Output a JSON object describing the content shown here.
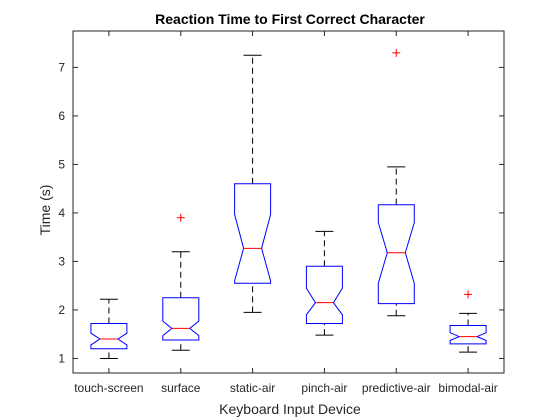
{
  "chart_data": {
    "type": "box",
    "title": "Reaction Time to First Correct Character",
    "xlabel": "Keyboard Input Device",
    "ylabel": "Time (s)",
    "ylim": [
      0.7,
      7.75
    ],
    "yticks": [
      1,
      2,
      3,
      4,
      5,
      6,
      7
    ],
    "notched": true,
    "grid": false,
    "legend": "none",
    "colors": {
      "box": "#0000ff",
      "median": "#ff0000",
      "whisker": "#000000",
      "outlier": "#ff0000"
    },
    "categories": [
      "touch-screen",
      "surface",
      "static-air",
      "pinch-air",
      "predictive-air",
      "bimodal-air"
    ],
    "boxes": [
      {
        "whisker_low": 1.0,
        "q1": 1.2,
        "notch_low": 1.28,
        "median": 1.4,
        "notch_high": 1.52,
        "q3": 1.72,
        "whisker_high": 2.22,
        "outliers": []
      },
      {
        "whisker_low": 1.17,
        "q1": 1.38,
        "notch_low": 1.47,
        "median": 1.62,
        "notch_high": 1.77,
        "q3": 2.25,
        "whisker_high": 3.2,
        "outliers": [
          3.9
        ]
      },
      {
        "whisker_low": 1.95,
        "q1": 2.55,
        "notch_low": 2.6,
        "median": 3.27,
        "notch_high": 3.97,
        "q3": 4.6,
        "whisker_high": 7.25,
        "outliers": []
      },
      {
        "whisker_low": 1.48,
        "q1": 1.72,
        "notch_low": 1.9,
        "median": 2.15,
        "notch_high": 2.45,
        "q3": 2.9,
        "whisker_high": 3.62,
        "outliers": []
      },
      {
        "whisker_low": 1.88,
        "q1": 2.13,
        "notch_low": 2.55,
        "median": 3.18,
        "notch_high": 3.8,
        "q3": 4.17,
        "whisker_high": 4.95,
        "outliers": [
          7.3
        ]
      },
      {
        "whisker_low": 1.13,
        "q1": 1.3,
        "notch_low": 1.37,
        "median": 1.45,
        "notch_high": 1.53,
        "q3": 1.68,
        "whisker_high": 1.93,
        "outliers": [
          2.32
        ]
      }
    ]
  }
}
